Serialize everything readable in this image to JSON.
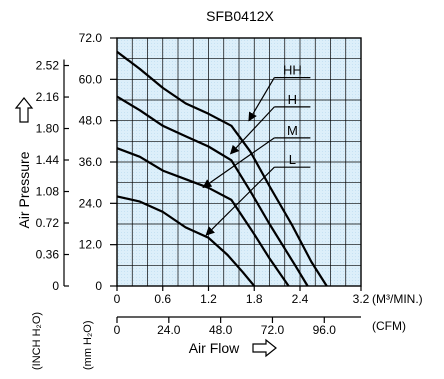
{
  "chart_data": {
    "type": "line",
    "title": "SFB0412X",
    "x_m3": {
      "label": "(M³/MIN.)",
      "min": 0,
      "max": 3.2,
      "ticks": [
        "0",
        "0.6",
        "1.2",
        "1.8",
        "2.4",
        "3.2"
      ],
      "tick_values": [
        0,
        0.6,
        1.2,
        1.8,
        2.4,
        3.2
      ]
    },
    "x_cfm": {
      "label": "(CFM)",
      "ticks": [
        "0",
        "24.0",
        "48.0",
        "72.0",
        "96.0"
      ],
      "tick_values": [
        0,
        24,
        48,
        72,
        96
      ]
    },
    "xlabel": "Air Flow",
    "y_mm": {
      "label": "(mm H₂O)",
      "min": 0,
      "max": 72,
      "ticks": [
        "0",
        "12.0",
        "24.0",
        "36.0",
        "48.0",
        "60.0",
        "72.0"
      ],
      "tick_values": [
        0,
        12,
        24,
        36,
        48,
        60,
        72
      ]
    },
    "y_inch": {
      "label": "(INCH H₂O)",
      "ticks": [
        "0",
        "0.36",
        "0.72",
        "1.08",
        "1.44",
        "1.80",
        "2.16",
        "2.52"
      ],
      "tick_values_mm": [
        0,
        9.14,
        18.29,
        27.43,
        36.58,
        45.72,
        54.86,
        64.01
      ]
    },
    "ylabel": "Air Pressure",
    "grid": true,
    "series": [
      {
        "name": "HH",
        "label_x": 2.3,
        "label_y": 60.5,
        "arrow_to": [
          1.73,
          48.0
        ],
        "points": [
          [
            0,
            68
          ],
          [
            0.3,
            63
          ],
          [
            0.6,
            57.5
          ],
          [
            0.9,
            53
          ],
          [
            1.2,
            50
          ],
          [
            1.5,
            46.5
          ],
          [
            1.75,
            39
          ],
          [
            2.0,
            29
          ],
          [
            2.3,
            17.5
          ],
          [
            2.55,
            7
          ],
          [
            2.75,
            0
          ]
        ]
      },
      {
        "name": "H",
        "label_x": 2.3,
        "label_y": 52,
        "arrow_to": [
          1.49,
          38.4
        ],
        "points": [
          [
            0,
            55
          ],
          [
            0.3,
            51
          ],
          [
            0.6,
            46.5
          ],
          [
            0.9,
            43.5
          ],
          [
            1.2,
            40.5
          ],
          [
            1.5,
            36.5
          ],
          [
            1.75,
            27.5
          ],
          [
            2.0,
            18
          ],
          [
            2.35,
            5.5
          ],
          [
            2.5,
            0
          ]
        ]
      },
      {
        "name": "M",
        "label_x": 2.3,
        "label_y": 43,
        "arrow_to": [
          1.13,
          28.6
        ],
        "points": [
          [
            0,
            40
          ],
          [
            0.3,
            37.5
          ],
          [
            0.6,
            33.5
          ],
          [
            0.9,
            31
          ],
          [
            1.2,
            28.5
          ],
          [
            1.5,
            25
          ],
          [
            1.8,
            15
          ],
          [
            2.0,
            8
          ],
          [
            2.25,
            0
          ]
        ]
      },
      {
        "name": "L",
        "label_x": 2.3,
        "label_y": 34.5,
        "arrow_to": [
          1.17,
          14.8
        ],
        "points": [
          [
            0,
            26
          ],
          [
            0.3,
            24.5
          ],
          [
            0.6,
            21.5
          ],
          [
            0.9,
            17
          ],
          [
            1.2,
            14
          ],
          [
            1.45,
            9
          ],
          [
            1.65,
            4
          ],
          [
            1.8,
            0
          ]
        ]
      }
    ]
  }
}
